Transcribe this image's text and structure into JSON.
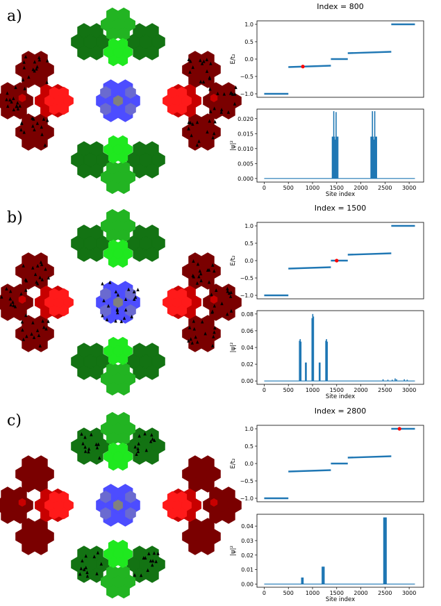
{
  "panels": [
    {
      "letter": "a)",
      "title": "Index = 800",
      "colors": {
        "outer": "#7a0000",
        "mid": "#c80000",
        "inner": "#ff1a1a",
        "green_dark": "#137313",
        "green_mid": "#22b422",
        "green_light": "#1fe81f",
        "blue": "#4d4dff",
        "blue_soft": "#6a6ad0",
        "center": "#808080",
        "marker": "#ff0000",
        "line": "#1f77b4"
      },
      "triangle_regions": [
        "outer"
      ]
    },
    {
      "letter": "b)",
      "title": "Index = 1500",
      "colors": {
        "outer": "#7a0000",
        "mid": "#c80000",
        "inner": "#ff1a1a",
        "green_dark": "#137313",
        "green_mid": "#22b422",
        "green_light": "#1fe81f",
        "blue": "#4d4dff",
        "blue_soft": "#6a6ad0",
        "center": "#808080",
        "marker": "#ff0000",
        "line": "#1f77b4"
      },
      "triangle_regions": [
        "outer",
        "blue"
      ]
    },
    {
      "letter": "c)",
      "title": "Index = 2800",
      "colors": {
        "outer": "#7a0000",
        "mid": "#c80000",
        "inner": "#ff1a1a",
        "green_dark": "#137313",
        "green_mid": "#22b422",
        "green_light": "#1fe81f",
        "blue": "#4d4dff",
        "blue_soft": "#6a6ad0",
        "center": "#808080",
        "marker": "#ff0000",
        "line": "#1f77b4"
      },
      "triangle_regions": [
        "green_dark"
      ]
    }
  ],
  "chart_data": [
    {
      "type": "line",
      "panel": "a)",
      "role": "energy",
      "ylabel": "E/t₂",
      "xlim": [
        -150,
        3300
      ],
      "ylim": [
        -1.1,
        1.1
      ],
      "xticks": [],
      "yticks": [
        -1.0,
        -0.5,
        0.0,
        0.5,
        1.0
      ],
      "ytick_labels": [
        "−1.0",
        "−0.5",
        "0.0",
        "0.5",
        "1.0"
      ],
      "segments": [
        {
          "x": [
            0,
            500
          ],
          "y": [
            -1.0,
            -1.0
          ]
        },
        {
          "x": [
            500,
            1380
          ],
          "y": [
            -0.23,
            -0.19
          ]
        },
        {
          "x": [
            1380,
            1730
          ],
          "y": [
            0.0,
            0.0
          ]
        },
        {
          "x": [
            1730,
            2630
          ],
          "y": [
            0.17,
            0.21
          ]
        },
        {
          "x": [
            2630,
            3120
          ],
          "y": [
            1.0,
            1.0
          ]
        }
      ],
      "marker": {
        "x": 800,
        "y": -0.215
      }
    },
    {
      "type": "line",
      "panel": "a)",
      "role": "probability",
      "ylabel": "|ψ|²",
      "xlabel": "Site index",
      "xlim": [
        -150,
        3300
      ],
      "ylim": [
        -0.0012,
        0.0232
      ],
      "xticks": [
        0,
        500,
        1000,
        1500,
        2000,
        2500,
        3000
      ],
      "xtick_labels": [
        "0",
        "500",
        "1000",
        "1500",
        "2000",
        "2500",
        "3000"
      ],
      "yticks": [
        0.0,
        0.005,
        0.01,
        0.015,
        0.02
      ],
      "ytick_labels": [
        "0.000",
        "0.005",
        "0.010",
        "0.015",
        "0.020"
      ],
      "baseline": 0.0,
      "peaks": [
        {
          "x": 1410,
          "y": 0.014
        },
        {
          "x": 1425,
          "y": 0.014
        },
        {
          "x": 1440,
          "y": 0.0225
        },
        {
          "x": 1455,
          "y": 0.014
        },
        {
          "x": 1470,
          "y": 0.013
        },
        {
          "x": 1488,
          "y": 0.0222
        },
        {
          "x": 1505,
          "y": 0.014
        },
        {
          "x": 1525,
          "y": 0.014
        },
        {
          "x": 2210,
          "y": 0.014
        },
        {
          "x": 2225,
          "y": 0.014
        },
        {
          "x": 2240,
          "y": 0.0225
        },
        {
          "x": 2255,
          "y": 0.014
        },
        {
          "x": 2270,
          "y": 0.013
        },
        {
          "x": 2288,
          "y": 0.0225
        },
        {
          "x": 2305,
          "y": 0.014
        },
        {
          "x": 2325,
          "y": 0.014
        }
      ]
    },
    {
      "type": "line",
      "panel": "b)",
      "role": "energy",
      "ylabel": "E/t₂",
      "xlim": [
        -150,
        3300
      ],
      "ylim": [
        -1.1,
        1.1
      ],
      "xticks": [],
      "yticks": [
        -1.0,
        -0.5,
        0.0,
        0.5,
        1.0
      ],
      "ytick_labels": [
        "−1.0",
        "−0.5",
        "0.0",
        "0.5",
        "1.0"
      ],
      "segments": [
        {
          "x": [
            0,
            500
          ],
          "y": [
            -1.0,
            -1.0
          ]
        },
        {
          "x": [
            500,
            1380
          ],
          "y": [
            -0.23,
            -0.19
          ]
        },
        {
          "x": [
            1380,
            1730
          ],
          "y": [
            0.0,
            0.0
          ]
        },
        {
          "x": [
            1730,
            2630
          ],
          "y": [
            0.17,
            0.21
          ]
        },
        {
          "x": [
            2630,
            3120
          ],
          "y": [
            1.0,
            1.0
          ]
        }
      ],
      "marker": {
        "x": 1500,
        "y": 0.0
      }
    },
    {
      "type": "line",
      "panel": "b)",
      "role": "probability",
      "ylabel": "|ψ|²",
      "xlabel": "Site index",
      "xlim": [
        -150,
        3300
      ],
      "ylim": [
        -0.004,
        0.084
      ],
      "xticks": [
        0,
        500,
        1000,
        1500,
        2000,
        2500,
        3000
      ],
      "xtick_labels": [
        "0",
        "500",
        "1000",
        "1500",
        "2000",
        "2500",
        "3000"
      ],
      "yticks": [
        0.0,
        0.02,
        0.04,
        0.06,
        0.08
      ],
      "ytick_labels": [
        "0.00",
        "0.02",
        "0.04",
        "0.06",
        "0.08"
      ],
      "baseline": 0.0,
      "peaks": [
        {
          "x": 730,
          "y": 0.048
        },
        {
          "x": 745,
          "y": 0.05
        },
        {
          "x": 760,
          "y": 0.047
        },
        {
          "x": 855,
          "y": 0.022
        },
        {
          "x": 870,
          "y": 0.022
        },
        {
          "x": 990,
          "y": 0.075
        },
        {
          "x": 1005,
          "y": 0.08
        },
        {
          "x": 1020,
          "y": 0.077
        },
        {
          "x": 1140,
          "y": 0.022
        },
        {
          "x": 1155,
          "y": 0.022
        },
        {
          "x": 1275,
          "y": 0.048
        },
        {
          "x": 1290,
          "y": 0.05
        },
        {
          "x": 1305,
          "y": 0.047
        },
        {
          "x": 2460,
          "y": 0.002
        },
        {
          "x": 2560,
          "y": 0.0015
        },
        {
          "x": 2650,
          "y": 0.0015
        },
        {
          "x": 2710,
          "y": 0.003
        },
        {
          "x": 2740,
          "y": 0.002
        },
        {
          "x": 2900,
          "y": 0.002
        },
        {
          "x": 2960,
          "y": 0.0015
        }
      ]
    },
    {
      "type": "line",
      "panel": "c)",
      "role": "energy",
      "ylabel": "E/t₂",
      "xlim": [
        -150,
        3300
      ],
      "ylim": [
        -1.1,
        1.1
      ],
      "xticks": [],
      "yticks": [
        -1.0,
        -0.5,
        0.0,
        0.5,
        1.0
      ],
      "ytick_labels": [
        "−1.0",
        "−0.5",
        "0.0",
        "0.5",
        "1.0"
      ],
      "segments": [
        {
          "x": [
            0,
            500
          ],
          "y": [
            -1.0,
            -1.0
          ]
        },
        {
          "x": [
            500,
            1380
          ],
          "y": [
            -0.23,
            -0.19
          ]
        },
        {
          "x": [
            1380,
            1730
          ],
          "y": [
            0.0,
            0.0
          ]
        },
        {
          "x": [
            1730,
            2630
          ],
          "y": [
            0.17,
            0.21
          ]
        },
        {
          "x": [
            2630,
            3120
          ],
          "y": [
            1.0,
            1.0
          ]
        }
      ],
      "marker": {
        "x": 2800,
        "y": 1.0
      }
    },
    {
      "type": "line",
      "panel": "c)",
      "role": "probability",
      "ylabel": "|ψ|²",
      "xlabel": "Site index",
      "xlim": [
        -150,
        3300
      ],
      "ylim": [
        -0.0022,
        0.0482
      ],
      "xticks": [
        0,
        500,
        1000,
        1500,
        2000,
        2500,
        3000
      ],
      "xtick_labels": [
        "0",
        "500",
        "1000",
        "1500",
        "2000",
        "2500",
        "3000"
      ],
      "yticks": [
        0.0,
        0.01,
        0.02,
        0.03,
        0.04
      ],
      "ytick_labels": [
        "0.00",
        "0.01",
        "0.02",
        "0.03",
        "0.04"
      ],
      "baseline": 0.0,
      "peaks": [
        {
          "x": 775,
          "y": 0.0045
        },
        {
          "x": 785,
          "y": 0.0045
        },
        {
          "x": 795,
          "y": 0.0045
        },
        {
          "x": 805,
          "y": 0.0045
        },
        {
          "x": 1200,
          "y": 0.012
        },
        {
          "x": 1210,
          "y": 0.012
        },
        {
          "x": 1220,
          "y": 0.012
        },
        {
          "x": 1230,
          "y": 0.012
        },
        {
          "x": 1240,
          "y": 0.012
        },
        {
          "x": 2475,
          "y": 0.046
        },
        {
          "x": 2485,
          "y": 0.046
        },
        {
          "x": 2495,
          "y": 0.046
        },
        {
          "x": 2505,
          "y": 0.046
        },
        {
          "x": 2515,
          "y": 0.046
        },
        {
          "x": 2525,
          "y": 0.046
        }
      ]
    }
  ]
}
